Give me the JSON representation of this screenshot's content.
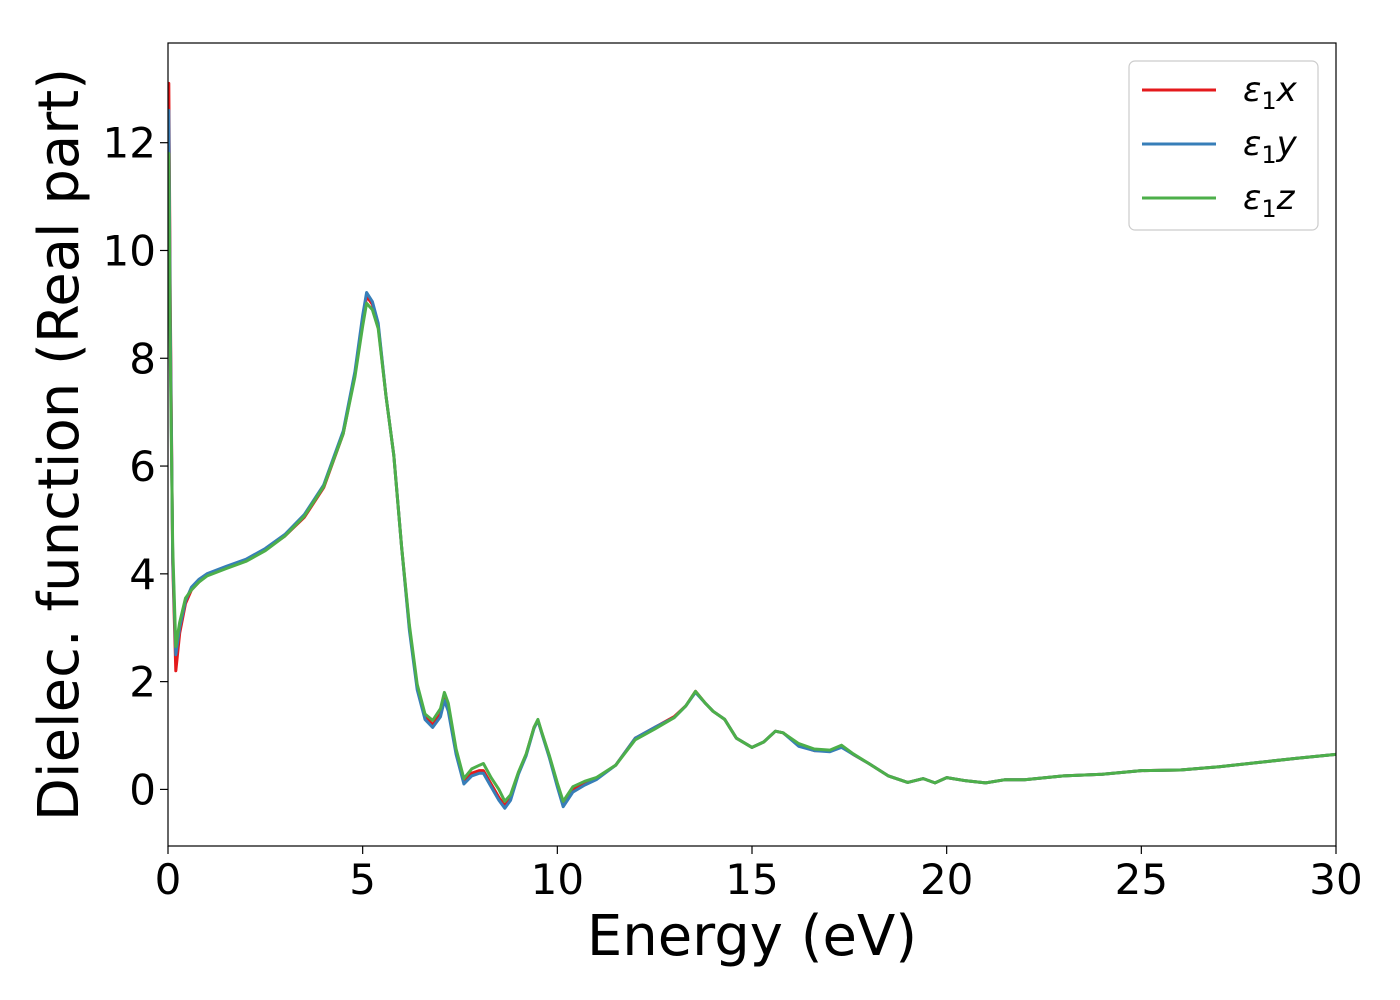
{
  "chart_data": {
    "type": "line",
    "xlabel": "Energy (eV)",
    "ylabel": "Dielec. function (Real part)",
    "xlim": [
      0,
      30
    ],
    "ylim": [
      -1.05,
      13.85
    ],
    "xticks": [
      0,
      5,
      10,
      15,
      20,
      25,
      30
    ],
    "yticks": [
      0,
      2,
      4,
      6,
      8,
      10,
      12
    ],
    "grid": false,
    "legend_position": "top-right",
    "series": [
      {
        "name": "ε1x",
        "legend": {
          "symbol": "ε",
          "sub": "1",
          "axis": "x"
        },
        "color": "#e41a1c",
        "points": [
          [
            0.02,
            13.1
          ],
          [
            0.06,
            9.0
          ],
          [
            0.12,
            4.2
          ],
          [
            0.2,
            2.2
          ],
          [
            0.3,
            2.9
          ],
          [
            0.45,
            3.45
          ],
          [
            0.6,
            3.7
          ],
          [
            0.8,
            3.85
          ],
          [
            1.0,
            3.97
          ],
          [
            1.5,
            4.12
          ],
          [
            2.0,
            4.25
          ],
          [
            2.5,
            4.45
          ],
          [
            3.0,
            4.7
          ],
          [
            3.5,
            5.05
          ],
          [
            4.0,
            5.6
          ],
          [
            4.5,
            6.6
          ],
          [
            4.8,
            7.7
          ],
          [
            5.0,
            8.7
          ],
          [
            5.1,
            9.15
          ],
          [
            5.25,
            9.0
          ],
          [
            5.4,
            8.6
          ],
          [
            5.6,
            7.3
          ],
          [
            5.8,
            6.2
          ],
          [
            6.0,
            4.5
          ],
          [
            6.2,
            3.0
          ],
          [
            6.4,
            1.9
          ],
          [
            6.6,
            1.35
          ],
          [
            6.8,
            1.2
          ],
          [
            7.0,
            1.4
          ],
          [
            7.1,
            1.7
          ],
          [
            7.2,
            1.5
          ],
          [
            7.4,
            0.7
          ],
          [
            7.6,
            0.15
          ],
          [
            7.8,
            0.3
          ],
          [
            8.0,
            0.35
          ],
          [
            8.1,
            0.35
          ],
          [
            8.3,
            0.1
          ],
          [
            8.5,
            -0.15
          ],
          [
            8.65,
            -0.3
          ],
          [
            8.8,
            -0.15
          ],
          [
            9.0,
            0.3
          ],
          [
            9.2,
            0.65
          ],
          [
            9.4,
            1.15
          ],
          [
            9.5,
            1.28
          ],
          [
            9.6,
            1.05
          ],
          [
            9.8,
            0.6
          ],
          [
            10.0,
            0.1
          ],
          [
            10.15,
            -0.28
          ],
          [
            10.4,
            0.0
          ],
          [
            10.7,
            0.12
          ],
          [
            11.0,
            0.2
          ],
          [
            11.5,
            0.45
          ],
          [
            12.0,
            0.95
          ],
          [
            12.5,
            1.15
          ],
          [
            13.0,
            1.35
          ],
          [
            13.3,
            1.55
          ],
          [
            13.55,
            1.82
          ],
          [
            13.8,
            1.6
          ],
          [
            14.0,
            1.45
          ],
          [
            14.3,
            1.3
          ],
          [
            14.6,
            0.95
          ],
          [
            15.0,
            0.78
          ],
          [
            15.3,
            0.88
          ],
          [
            15.6,
            1.08
          ],
          [
            15.8,
            1.05
          ],
          [
            16.2,
            0.82
          ],
          [
            16.6,
            0.72
          ],
          [
            17.0,
            0.72
          ],
          [
            17.3,
            0.8
          ],
          [
            17.6,
            0.65
          ],
          [
            18.0,
            0.48
          ],
          [
            18.5,
            0.25
          ],
          [
            19.0,
            0.13
          ],
          [
            19.4,
            0.2
          ],
          [
            19.7,
            0.12
          ],
          [
            20.0,
            0.22
          ],
          [
            20.5,
            0.16
          ],
          [
            21.0,
            0.12
          ],
          [
            21.5,
            0.18
          ],
          [
            22.0,
            0.18
          ],
          [
            23.0,
            0.25
          ],
          [
            24.0,
            0.28
          ],
          [
            25.0,
            0.35
          ],
          [
            26.0,
            0.36
          ],
          [
            27.0,
            0.42
          ],
          [
            28.0,
            0.5
          ],
          [
            29.0,
            0.58
          ],
          [
            30.0,
            0.65
          ]
        ]
      },
      {
        "name": "ε1y",
        "legend": {
          "symbol": "ε",
          "sub": "1",
          "axis": "y"
        },
        "color": "#377eb8",
        "points": [
          [
            0.02,
            12.6
          ],
          [
            0.06,
            8.6
          ],
          [
            0.12,
            4.3
          ],
          [
            0.2,
            2.5
          ],
          [
            0.3,
            3.0
          ],
          [
            0.45,
            3.5
          ],
          [
            0.6,
            3.75
          ],
          [
            0.8,
            3.9
          ],
          [
            1.0,
            4.0
          ],
          [
            1.5,
            4.14
          ],
          [
            2.0,
            4.27
          ],
          [
            2.5,
            4.47
          ],
          [
            3.0,
            4.73
          ],
          [
            3.5,
            5.1
          ],
          [
            4.0,
            5.65
          ],
          [
            4.5,
            6.65
          ],
          [
            4.8,
            7.75
          ],
          [
            5.0,
            8.8
          ],
          [
            5.1,
            9.22
          ],
          [
            5.25,
            9.05
          ],
          [
            5.4,
            8.65
          ],
          [
            5.6,
            7.3
          ],
          [
            5.8,
            6.2
          ],
          [
            6.0,
            4.5
          ],
          [
            6.2,
            2.95
          ],
          [
            6.4,
            1.85
          ],
          [
            6.6,
            1.3
          ],
          [
            6.8,
            1.15
          ],
          [
            7.0,
            1.35
          ],
          [
            7.1,
            1.65
          ],
          [
            7.2,
            1.45
          ],
          [
            7.4,
            0.65
          ],
          [
            7.6,
            0.1
          ],
          [
            7.8,
            0.25
          ],
          [
            8.0,
            0.3
          ],
          [
            8.1,
            0.3
          ],
          [
            8.3,
            0.05
          ],
          [
            8.5,
            -0.2
          ],
          [
            8.65,
            -0.35
          ],
          [
            8.8,
            -0.2
          ],
          [
            9.0,
            0.28
          ],
          [
            9.2,
            0.63
          ],
          [
            9.4,
            1.13
          ],
          [
            9.5,
            1.28
          ],
          [
            9.6,
            1.04
          ],
          [
            9.8,
            0.58
          ],
          [
            10.0,
            0.05
          ],
          [
            10.15,
            -0.32
          ],
          [
            10.4,
            -0.05
          ],
          [
            10.7,
            0.08
          ],
          [
            11.0,
            0.18
          ],
          [
            11.5,
            0.45
          ],
          [
            12.0,
            0.95
          ],
          [
            12.5,
            1.15
          ],
          [
            13.0,
            1.33
          ],
          [
            13.3,
            1.55
          ],
          [
            13.55,
            1.8
          ],
          [
            13.8,
            1.6
          ],
          [
            14.0,
            1.45
          ],
          [
            14.3,
            1.3
          ],
          [
            14.6,
            0.95
          ],
          [
            15.0,
            0.78
          ],
          [
            15.3,
            0.88
          ],
          [
            15.6,
            1.08
          ],
          [
            15.8,
            1.05
          ],
          [
            16.2,
            0.8
          ],
          [
            16.6,
            0.72
          ],
          [
            17.0,
            0.7
          ],
          [
            17.3,
            0.78
          ],
          [
            17.6,
            0.65
          ],
          [
            18.0,
            0.48
          ],
          [
            18.5,
            0.25
          ],
          [
            19.0,
            0.13
          ],
          [
            19.4,
            0.2
          ],
          [
            19.7,
            0.12
          ],
          [
            20.0,
            0.22
          ],
          [
            20.5,
            0.16
          ],
          [
            21.0,
            0.12
          ],
          [
            21.5,
            0.18
          ],
          [
            22.0,
            0.18
          ],
          [
            23.0,
            0.25
          ],
          [
            24.0,
            0.28
          ],
          [
            25.0,
            0.35
          ],
          [
            26.0,
            0.36
          ],
          [
            27.0,
            0.42
          ],
          [
            28.0,
            0.5
          ],
          [
            29.0,
            0.58
          ],
          [
            30.0,
            0.65
          ]
        ]
      },
      {
        "name": "ε1z",
        "legend": {
          "symbol": "ε",
          "sub": "1",
          "axis": "z"
        },
        "color": "#4daf4a",
        "points": [
          [
            0.02,
            11.8
          ],
          [
            0.06,
            8.0
          ],
          [
            0.12,
            4.5
          ],
          [
            0.2,
            2.65
          ],
          [
            0.3,
            3.1
          ],
          [
            0.45,
            3.55
          ],
          [
            0.6,
            3.7
          ],
          [
            0.8,
            3.85
          ],
          [
            1.0,
            3.96
          ],
          [
            1.5,
            4.1
          ],
          [
            2.0,
            4.23
          ],
          [
            2.5,
            4.43
          ],
          [
            3.0,
            4.7
          ],
          [
            3.5,
            5.07
          ],
          [
            4.0,
            5.62
          ],
          [
            4.5,
            6.6
          ],
          [
            4.8,
            7.65
          ],
          [
            5.0,
            8.6
          ],
          [
            5.1,
            9.02
          ],
          [
            5.25,
            8.9
          ],
          [
            5.4,
            8.55
          ],
          [
            5.6,
            7.3
          ],
          [
            5.8,
            6.2
          ],
          [
            6.0,
            4.5
          ],
          [
            6.2,
            3.05
          ],
          [
            6.4,
            1.95
          ],
          [
            6.6,
            1.4
          ],
          [
            6.8,
            1.28
          ],
          [
            7.0,
            1.5
          ],
          [
            7.1,
            1.8
          ],
          [
            7.2,
            1.6
          ],
          [
            7.4,
            0.75
          ],
          [
            7.6,
            0.2
          ],
          [
            7.8,
            0.38
          ],
          [
            8.0,
            0.45
          ],
          [
            8.1,
            0.48
          ],
          [
            8.3,
            0.22
          ],
          [
            8.5,
            0.0
          ],
          [
            8.65,
            -0.22
          ],
          [
            8.8,
            -0.1
          ],
          [
            9.0,
            0.32
          ],
          [
            9.2,
            0.66
          ],
          [
            9.4,
            1.15
          ],
          [
            9.5,
            1.3
          ],
          [
            9.6,
            1.06
          ],
          [
            9.8,
            0.62
          ],
          [
            10.0,
            0.12
          ],
          [
            10.15,
            -0.22
          ],
          [
            10.4,
            0.05
          ],
          [
            10.7,
            0.15
          ],
          [
            11.0,
            0.22
          ],
          [
            11.5,
            0.45
          ],
          [
            12.0,
            0.92
          ],
          [
            12.5,
            1.12
          ],
          [
            13.0,
            1.33
          ],
          [
            13.3,
            1.55
          ],
          [
            13.55,
            1.82
          ],
          [
            13.8,
            1.6
          ],
          [
            14.0,
            1.45
          ],
          [
            14.3,
            1.3
          ],
          [
            14.6,
            0.95
          ],
          [
            15.0,
            0.78
          ],
          [
            15.3,
            0.88
          ],
          [
            15.6,
            1.08
          ],
          [
            15.8,
            1.05
          ],
          [
            16.2,
            0.85
          ],
          [
            16.6,
            0.75
          ],
          [
            17.0,
            0.73
          ],
          [
            17.3,
            0.82
          ],
          [
            17.6,
            0.66
          ],
          [
            18.0,
            0.48
          ],
          [
            18.5,
            0.25
          ],
          [
            19.0,
            0.13
          ],
          [
            19.4,
            0.2
          ],
          [
            19.7,
            0.12
          ],
          [
            20.0,
            0.22
          ],
          [
            20.5,
            0.16
          ],
          [
            21.0,
            0.12
          ],
          [
            21.5,
            0.18
          ],
          [
            22.0,
            0.18
          ],
          [
            23.0,
            0.25
          ],
          [
            24.0,
            0.28
          ],
          [
            25.0,
            0.35
          ],
          [
            26.0,
            0.36
          ],
          [
            27.0,
            0.42
          ],
          [
            28.0,
            0.5
          ],
          [
            29.0,
            0.58
          ],
          [
            30.0,
            0.65
          ]
        ]
      }
    ]
  }
}
